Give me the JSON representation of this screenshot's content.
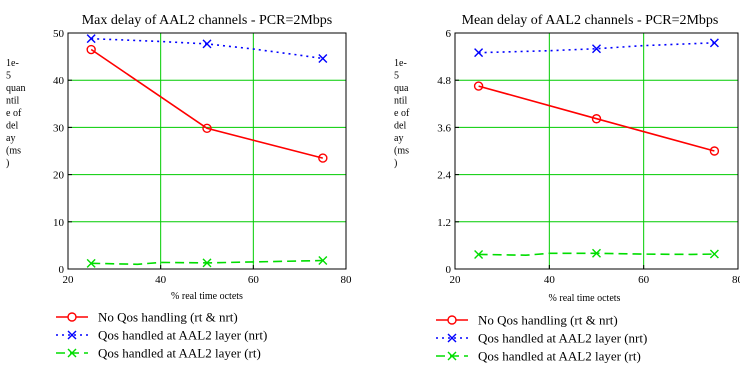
{
  "chart_data": [
    {
      "type": "line",
      "title": "Max delay of AAL2 channels - PCR=2Mbps",
      "xlabel": "% real time octets",
      "ylabel_lines": [
        "1e-",
        "5",
        "quan",
        "ntil",
        "e of",
        "del",
        "ay",
        "(ms",
        ")"
      ],
      "xlim": [
        20,
        80
      ],
      "ylim": [
        0,
        50
      ],
      "xticks": [
        "20",
        "40",
        "60",
        "80"
      ],
      "yticks": [
        "0",
        "10",
        "20",
        "30",
        "40",
        "50"
      ],
      "grid": true,
      "series": [
        {
          "name": "No Qos handling (rt & nrt)",
          "color": "#ff0000",
          "dash": "solid",
          "marker": "circle",
          "x": [
            25,
            50,
            75
          ],
          "y": [
            46.5,
            29.8,
            23.5
          ],
          "path_x": [
            25,
            50,
            75
          ],
          "path_y": [
            46.5,
            29.8,
            23.5
          ]
        },
        {
          "name": "Qos handled at AAL2 layer (nrt)",
          "color": "#0000ff",
          "dash": "dot",
          "marker": "x",
          "x": [
            25,
            50,
            75
          ],
          "y": [
            48.8,
            47.7,
            44.6
          ],
          "path_x": [
            25,
            30,
            40,
            50,
            60,
            70,
            75
          ],
          "path_y": [
            48.8,
            48.6,
            48.2,
            47.7,
            46.6,
            45.3,
            44.6
          ]
        },
        {
          "name": "Qos handled at AAL2 layer (rt)",
          "color": "#00dd00",
          "dash": "dash",
          "marker": "x",
          "x": [
            25,
            50,
            75
          ],
          "y": [
            1.2,
            1.3,
            1.8
          ],
          "path_x": [
            25,
            30,
            35,
            40,
            50,
            60,
            70,
            75
          ],
          "path_y": [
            1.2,
            1.1,
            1.0,
            1.4,
            1.3,
            1.5,
            1.7,
            1.8
          ]
        }
      ]
    },
    {
      "type": "line",
      "title": "Mean delay of AAL2 channels - PCR=2Mbps",
      "xlabel": "% real time octets",
      "ylabel_lines": [
        "1e-",
        "5",
        "qua",
        "ntil",
        "e of",
        "del",
        "ay",
        "(ms",
        ")"
      ],
      "xlim": [
        20,
        80
      ],
      "ylim": [
        0,
        6
      ],
      "xticks": [
        "20",
        "40",
        "60",
        "80"
      ],
      "yticks": [
        "0",
        "1.2",
        "2.4",
        "3.6",
        "4.8",
        "6"
      ],
      "grid": true,
      "series": [
        {
          "name": "No Qos handling (rt & nrt)",
          "color": "#ff0000",
          "dash": "solid",
          "marker": "circle",
          "x": [
            25,
            50,
            75
          ],
          "y": [
            4.65,
            3.82,
            3.0
          ],
          "path_x": [
            25,
            50,
            75
          ],
          "path_y": [
            4.65,
            3.82,
            3.0
          ]
        },
        {
          "name": "Qos handled at AAL2 layer (nrt)",
          "color": "#0000ff",
          "dash": "dot",
          "marker": "x",
          "x": [
            25,
            50,
            75
          ],
          "y": [
            5.5,
            5.6,
            5.75
          ],
          "path_x": [
            25,
            40,
            50,
            60,
            75
          ],
          "path_y": [
            5.5,
            5.55,
            5.6,
            5.68,
            5.75
          ]
        },
        {
          "name": "Qos handled at AAL2 layer (rt)",
          "color": "#00dd00",
          "dash": "dash",
          "marker": "x",
          "x": [
            25,
            50,
            75
          ],
          "y": [
            0.37,
            0.4,
            0.38
          ],
          "path_x": [
            25,
            30,
            35,
            40,
            50,
            60,
            70,
            75
          ],
          "path_y": [
            0.37,
            0.36,
            0.35,
            0.4,
            0.4,
            0.38,
            0.37,
            0.38
          ]
        }
      ]
    }
  ]
}
